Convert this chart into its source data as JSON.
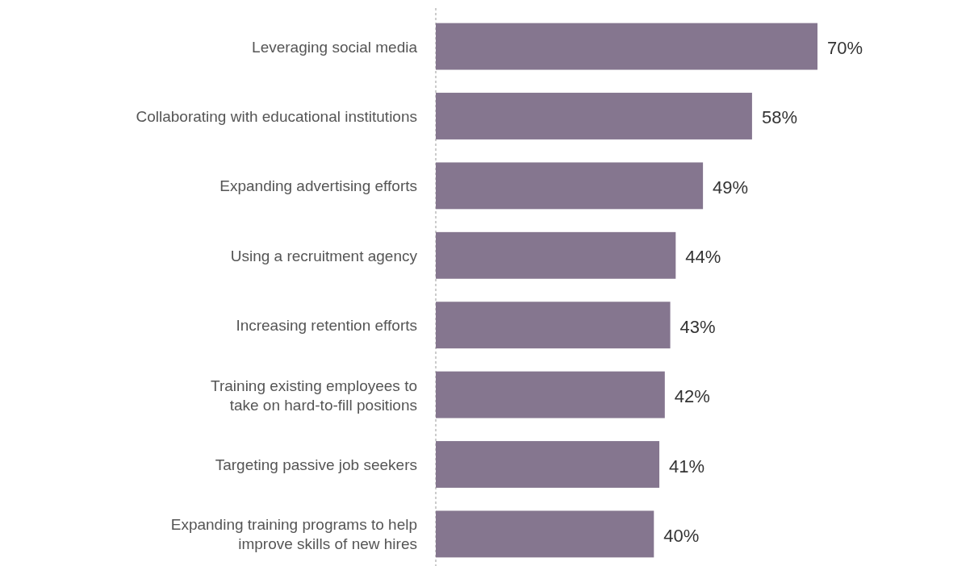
{
  "chart_data": {
    "type": "bar",
    "orientation": "horizontal",
    "categories": [
      "Leveraging social media",
      "Collaborating with educational institutions",
      "Expanding advertising efforts",
      "Using a recruitment agency",
      "Increasing retention efforts",
      "Training existing employees to\ntake on hard-to-fill positions",
      "Targeting passive job seekers",
      "Expanding training programs to help\nimprove skills of new hires"
    ],
    "values": [
      70,
      58,
      49,
      44,
      43,
      42,
      41,
      40
    ],
    "value_labels": [
      "70%",
      "58%",
      "49%",
      "44%",
      "43%",
      "42%",
      "41%",
      "40%"
    ],
    "color": "#85768f"
  }
}
